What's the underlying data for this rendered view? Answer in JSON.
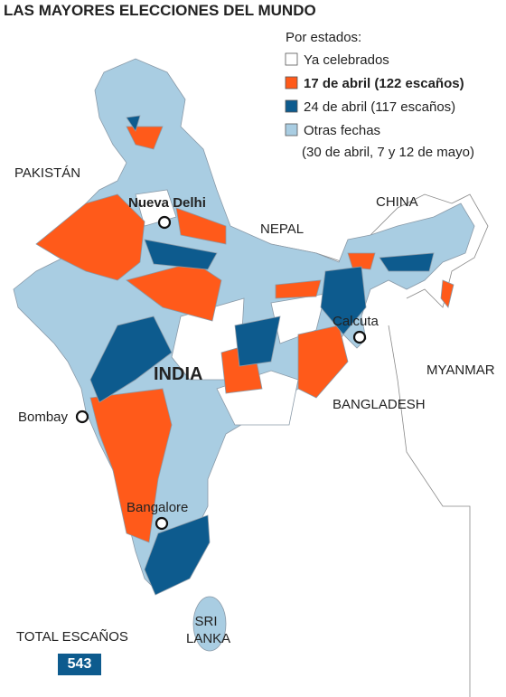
{
  "title": "LAS MAYORES ELECCIONES DEL MUNDO",
  "legend": {
    "heading": "Por estados:",
    "items": [
      {
        "label": "Ya celebrados",
        "color": "#ffffff"
      },
      {
        "label": "17 de abril (122 escaños)",
        "color": "#ff5a1a"
      },
      {
        "label": "24 de abril (117 escaños)",
        "color": "#0d5b8e"
      },
      {
        "label": "Otras fechas",
        "sublabel": "(30 de abril, 7 y 12 de mayo)",
        "color": "#a9cde2"
      }
    ]
  },
  "countries": {
    "pakistan": "PAKISTÁN",
    "nepal": "NEPAL",
    "china": "CHINA",
    "myanmar": "MYANMAR",
    "bangladesh": "BANGLADESH",
    "srilanka": "SRI LANKA",
    "india": "INDIA"
  },
  "cities": {
    "delhi": "Nueva Delhi",
    "calcuta": "Calcuta",
    "bombay": "Bombay",
    "bangalore": "Bangalore"
  },
  "total": {
    "label": "TOTAL ESCAÑOS",
    "value": 543
  }
}
